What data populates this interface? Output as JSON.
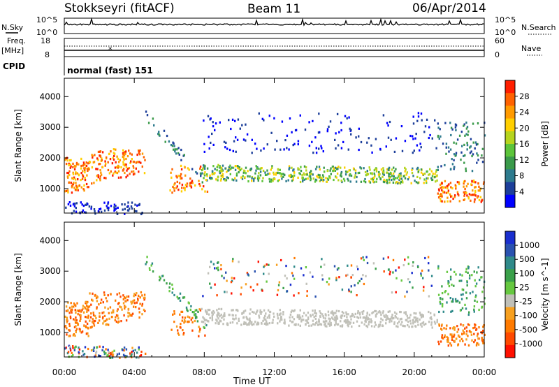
{
  "header": {
    "station": "Stokkseyri (fitACF)",
    "beam": "Beam 11",
    "date": "06/Apr/2014"
  },
  "top_panels": {
    "nsky_label": "N.Sky",
    "nsky_top": "10^5",
    "nsky_bottom": "10^0",
    "nsearch_label": "N.Search",
    "nsearch_top": "10^5",
    "nsearch_bottom": "10^0",
    "freq_label": "Freq.",
    "freq_unit": "[MHz]",
    "freq_top": "18",
    "freq_bottom": "8",
    "nave_label": "Nave",
    "nave_top": "60",
    "nave_bottom": "0",
    "cpid_label": "CPID",
    "cpid_value": "normal (fast) 151"
  },
  "chart_data": [
    {
      "type": "heatmap",
      "name": "Power",
      "ylabel": "Slant Range [km]",
      "xlabel": "Time UT",
      "xlim_hours": [
        0,
        24
      ],
      "ylim_km": [
        200,
        4600
      ],
      "yticks": [
        1000,
        2000,
        3000,
        4000
      ],
      "xticks": [
        "00:00",
        "04:00",
        "08:00",
        "12:00",
        "16:00",
        "20:00",
        "00:00"
      ],
      "colorbar": {
        "label": "Power [dB]",
        "ticks": [
          "4",
          "8",
          "12",
          "16",
          "20",
          "24",
          "28"
        ],
        "colors": [
          "#0000ff",
          "#1d3f9a",
          "#2e7b8e",
          "#3a9a4a",
          "#5cc43a",
          "#b6d41d",
          "#ffcf00",
          "#ff9a00",
          "#ff6200",
          "#ff1e00"
        ]
      }
    },
    {
      "type": "heatmap",
      "name": "Velocity",
      "ylabel": "Slant Range [km]",
      "xlabel": "Time UT",
      "xlim_hours": [
        0,
        24
      ],
      "ylim_km": [
        200,
        4600
      ],
      "yticks": [
        1000,
        2000,
        3000,
        4000
      ],
      "xticks": [
        "00:00",
        "04:00",
        "08:00",
        "12:00",
        "16:00",
        "20:00",
        "00:00"
      ],
      "colorbar": {
        "label": "Velocity [m s^-1]",
        "ticks": [
          "1000",
          "500",
          "100",
          "25",
          "-25",
          "-100",
          "-500",
          "-1000"
        ],
        "colors": [
          "#1a2fcf",
          "#2a52b0",
          "#2f8a8a",
          "#3aa04a",
          "#66c840",
          "#c0c0b8",
          "#f7a020",
          "#ff7a00",
          "#ff4a00",
          "#ff1000"
        ]
      }
    }
  ]
}
